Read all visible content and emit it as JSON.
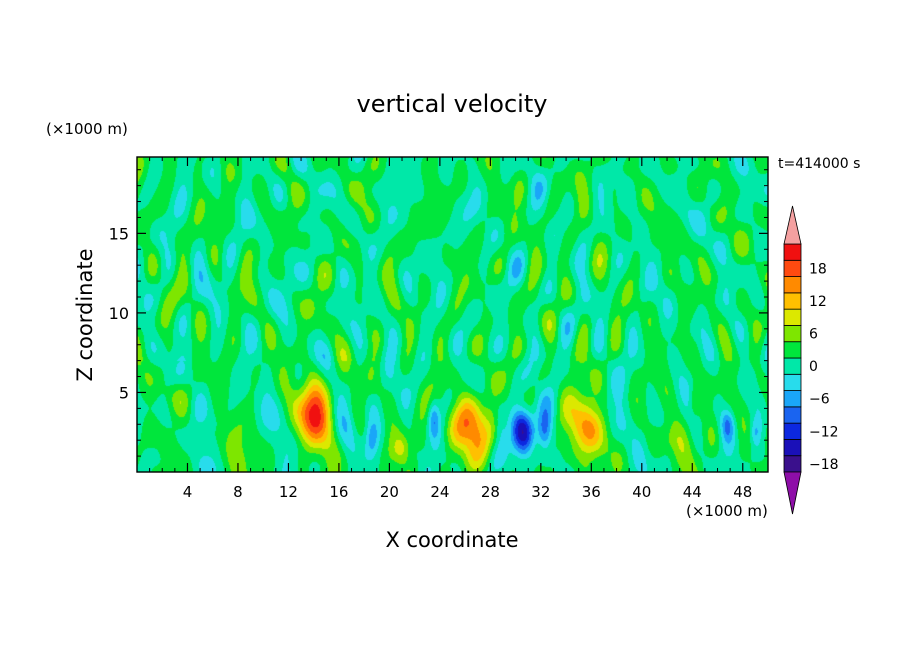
{
  "chart_data": {
    "type": "contour",
    "title": "vertical velocity",
    "xlabel": "X coordinate",
    "ylabel": "Z coordinate",
    "x_unit_label": "(×1000 m)",
    "y_unit_label": "(×1000 m)",
    "time_label": "t=414000 s",
    "xlim": [
      0,
      50
    ],
    "ylim": [
      0,
      19.8
    ],
    "x_ticks": [
      4,
      8,
      12,
      16,
      20,
      24,
      28,
      32,
      36,
      40,
      44,
      48
    ],
    "y_ticks": [
      5,
      10,
      15
    ],
    "x_tick_labels": [
      "4",
      "8",
      "12",
      "16",
      "20",
      "24",
      "28",
      "32",
      "36",
      "40",
      "44",
      "48"
    ],
    "y_tick_labels": [
      "5",
      "10",
      "15"
    ],
    "colorbar": {
      "levels": [
        -21,
        -18,
        -15,
        -12,
        -9,
        -6,
        -3,
        0,
        3,
        6,
        9,
        12,
        15,
        18,
        21
      ],
      "tick_values": [
        18,
        12,
        6,
        0,
        -6,
        -12,
        -18
      ],
      "tick_labels": [
        "18",
        "12",
        "6",
        "0",
        "−6",
        "−12",
        "−18"
      ],
      "colors": [
        "#8e0ea8",
        "#3a108c",
        "#1a10b8",
        "#0c28e0",
        "#1a64f0",
        "#1aa6f8",
        "#28dcec",
        "#00e8a8",
        "#00e63c",
        "#7ee600",
        "#dce800",
        "#ffc000",
        "#ff8a00",
        "#ff4a10",
        "#f01010",
        "#f4a0a0"
      ]
    },
    "features": [
      {
        "x": 14.0,
        "z": 3.6,
        "sx": 1.2,
        "sz": 2.0,
        "w": 20
      },
      {
        "x": 26.5,
        "z": 2.9,
        "sx": 1.5,
        "sz": 1.8,
        "w": 16
      },
      {
        "x": 35.5,
        "z": 2.8,
        "sx": 1.3,
        "sz": 1.8,
        "w": 15
      },
      {
        "x": 30.6,
        "z": 2.7,
        "sx": 0.9,
        "sz": 1.5,
        "w": -16
      },
      {
        "x": 32.3,
        "z": 2.5,
        "sx": 0.6,
        "sz": 1.2,
        "w": -12
      },
      {
        "x": 23.5,
        "z": 3.4,
        "sx": 0.45,
        "sz": 1.3,
        "w": -8
      },
      {
        "x": 18.6,
        "z": 2.0,
        "sx": 0.5,
        "sz": 1.0,
        "w": -6
      },
      {
        "x": 46.8,
        "z": 3.0,
        "sx": 0.5,
        "sz": 0.9,
        "w": -7
      },
      {
        "x": 49.0,
        "z": 2.5,
        "sx": 0.4,
        "sz": 0.8,
        "w": -5
      },
      {
        "x": 3.0,
        "z": 4.8,
        "sx": 1.0,
        "sz": 1.0,
        "w": 4
      },
      {
        "x": 7.5,
        "z": 2.3,
        "sx": 1.0,
        "sz": 1.7,
        "w": 5
      },
      {
        "x": 21.0,
        "z": 1.5,
        "sx": 0.7,
        "sz": 0.9,
        "w": 6
      },
      {
        "x": 42.2,
        "z": 2.0,
        "sx": 1.3,
        "sz": 1.1,
        "w": 5
      },
      {
        "x": 44.2,
        "z": 4.5,
        "sx": 0.4,
        "sz": 1.0,
        "w": 4
      },
      {
        "x": 10.5,
        "z": 3.0,
        "sx": 1.0,
        "sz": 1.6,
        "w": -3
      },
      {
        "x": 16.7,
        "z": 3.0,
        "sx": 0.8,
        "sz": 1.6,
        "w": -4
      },
      {
        "x": 38.6,
        "z": 3.2,
        "sx": 1.0,
        "sz": 1.5,
        "w": -4
      },
      {
        "x": 5.5,
        "z": 3.6,
        "sx": 1.3,
        "sz": 1.4,
        "w": -3
      },
      {
        "x": 28.8,
        "z": 3.0,
        "sx": 0.5,
        "sz": 1.5,
        "w": -5
      }
    ]
  }
}
